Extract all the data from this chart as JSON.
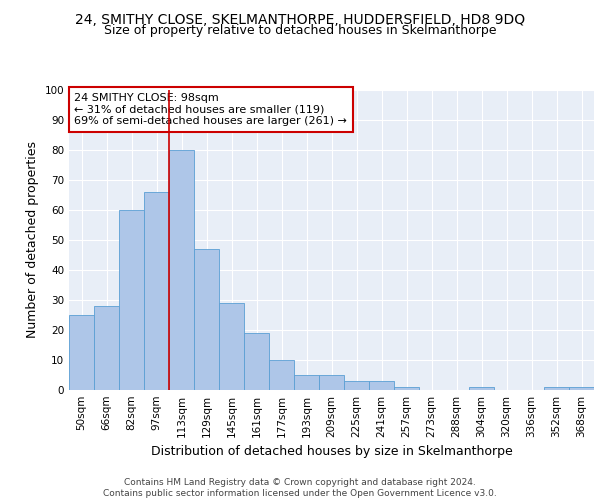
{
  "title1": "24, SMITHY CLOSE, SKELMANTHORPE, HUDDERSFIELD, HD8 9DQ",
  "title2": "Size of property relative to detached houses in Skelmanthorpe",
  "xlabel": "Distribution of detached houses by size in Skelmanthorpe",
  "ylabel": "Number of detached properties",
  "categories": [
    "50sqm",
    "66sqm",
    "82sqm",
    "97sqm",
    "113sqm",
    "129sqm",
    "145sqm",
    "161sqm",
    "177sqm",
    "193sqm",
    "209sqm",
    "225sqm",
    "241sqm",
    "257sqm",
    "273sqm",
    "288sqm",
    "304sqm",
    "320sqm",
    "336sqm",
    "352sqm",
    "368sqm"
  ],
  "values": [
    25,
    28,
    60,
    66,
    80,
    47,
    29,
    19,
    10,
    5,
    5,
    3,
    3,
    1,
    0,
    0,
    1,
    0,
    0,
    1,
    1
  ],
  "bar_color": "#aec6e8",
  "bar_edge_color": "#5a9fd4",
  "vline_x": 3.5,
  "vline_color": "#cc0000",
  "annotation_text": "24 SMITHY CLOSE: 98sqm\n← 31% of detached houses are smaller (119)\n69% of semi-detached houses are larger (261) →",
  "annotation_box_color": "#cc0000",
  "ylim": [
    0,
    100
  ],
  "yticks": [
    0,
    10,
    20,
    30,
    40,
    50,
    60,
    70,
    80,
    90,
    100
  ],
  "background_color": "#e8eef7",
  "footer_text": "Contains HM Land Registry data © Crown copyright and database right 2024.\nContains public sector information licensed under the Open Government Licence v3.0.",
  "title1_fontsize": 10,
  "title2_fontsize": 9,
  "annotation_fontsize": 8,
  "axis_label_fontsize": 9,
  "tick_fontsize": 7.5,
  "footer_fontsize": 6.5
}
